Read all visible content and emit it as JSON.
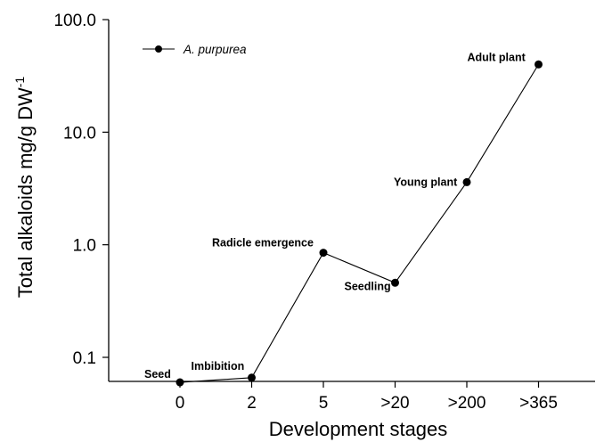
{
  "chart_data": {
    "type": "line",
    "categories": [
      "0",
      "2",
      "5",
      ">20",
      ">200",
      ">365"
    ],
    "series": [
      {
        "name": "A. purpurea",
        "values": [
          0.06,
          0.066,
          0.85,
          0.46,
          3.6,
          40.0
        ]
      }
    ],
    "annotations": [
      "Seed",
      "Imbibition",
      "Radicle emergence",
      "Seedling",
      "Young plant",
      "Adult plant"
    ],
    "xlabel": "Development stages",
    "ylabel": "Total alkaloids mg/g DW",
    "ylabel_superscript": "-1",
    "yscale": "log",
    "ylim": [
      0.06,
      100
    ],
    "yticks": [
      0.1,
      1,
      10,
      100
    ],
    "ytick_labels": [
      "0.1",
      "1.0",
      "10.0",
      "100.0"
    ],
    "grid": false,
    "legend_position": "top-left",
    "color": "#000000"
  }
}
